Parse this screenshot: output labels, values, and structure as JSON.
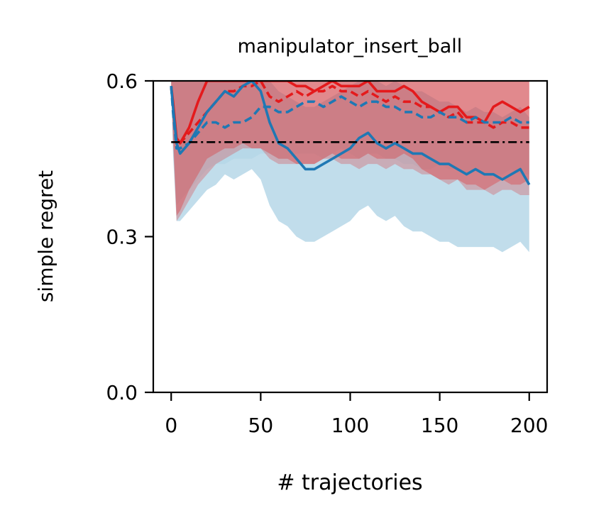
{
  "chart_data": {
    "type": "line",
    "title": "manipulator_insert_ball",
    "xlabel": "# trajectories",
    "ylabel": "simple regret",
    "xlim": [
      -10,
      210
    ],
    "ylim": [
      0.0,
      0.6
    ],
    "xticks": [
      0,
      50,
      100,
      150,
      200
    ],
    "xtick_labels": [
      "0",
      "50",
      "100",
      "150",
      "200"
    ],
    "yticks": [
      0.0,
      0.3,
      0.6
    ],
    "ytick_labels": [
      "0.0",
      "0.3",
      "0.6"
    ],
    "grid": false,
    "legend": "none",
    "x": [
      0,
      1,
      3,
      5,
      10,
      15,
      20,
      25,
      30,
      35,
      40,
      45,
      50,
      55,
      60,
      65,
      70,
      75,
      80,
      85,
      90,
      95,
      100,
      105,
      110,
      115,
      120,
      125,
      130,
      135,
      140,
      145,
      150,
      155,
      160,
      165,
      170,
      175,
      180,
      185,
      190,
      195,
      200
    ],
    "series": [
      {
        "style": "solid",
        "color": "#e41a1c",
        "values": [
          0.59,
          0.56,
          0.49,
          0.48,
          0.51,
          0.56,
          0.6,
          0.6,
          0.6,
          0.6,
          0.6,
          0.6,
          0.6,
          0.6,
          0.6,
          0.6,
          0.59,
          0.59,
          0.58,
          0.59,
          0.6,
          0.59,
          0.59,
          0.59,
          0.6,
          0.58,
          0.58,
          0.58,
          0.59,
          0.58,
          0.56,
          0.55,
          0.54,
          0.55,
          0.55,
          0.53,
          0.53,
          0.52,
          0.55,
          0.56,
          0.55,
          0.54,
          0.55
        ],
        "band_low": [
          0.59,
          0.5,
          0.34,
          0.35,
          0.39,
          0.42,
          0.45,
          0.46,
          0.47,
          0.47,
          0.48,
          0.47,
          0.47,
          0.46,
          0.45,
          0.45,
          0.44,
          0.44,
          0.44,
          0.45,
          0.46,
          0.45,
          0.45,
          0.45,
          0.46,
          0.45,
          0.45,
          0.45,
          0.46,
          0.45,
          0.43,
          0.42,
          0.41,
          0.41,
          0.41,
          0.4,
          0.4,
          0.39,
          0.4,
          0.41,
          0.4,
          0.4,
          0.41
        ],
        "band_high": [
          0.6,
          0.6,
          0.6,
          0.6,
          0.6,
          0.6,
          0.6,
          0.6,
          0.6,
          0.6,
          0.6,
          0.6,
          0.6,
          0.6,
          0.6,
          0.6,
          0.6,
          0.6,
          0.6,
          0.6,
          0.6,
          0.6,
          0.6,
          0.6,
          0.6,
          0.6,
          0.6,
          0.6,
          0.6,
          0.6,
          0.6,
          0.6,
          0.6,
          0.6,
          0.6,
          0.6,
          0.6,
          0.6,
          0.6,
          0.6,
          0.6,
          0.6,
          0.6
        ]
      },
      {
        "style": "dashed",
        "color": "#e41a1c",
        "values": [
          0.59,
          0.55,
          0.48,
          0.48,
          0.5,
          0.52,
          0.54,
          0.56,
          0.58,
          0.58,
          0.59,
          0.59,
          0.6,
          0.57,
          0.56,
          0.57,
          0.58,
          0.57,
          0.58,
          0.58,
          0.59,
          0.58,
          0.58,
          0.57,
          0.58,
          0.57,
          0.56,
          0.57,
          0.56,
          0.56,
          0.55,
          0.55,
          0.54,
          0.53,
          0.54,
          0.52,
          0.52,
          0.52,
          0.51,
          0.52,
          0.52,
          0.51,
          0.51
        ],
        "band_low": [
          0.59,
          0.48,
          0.33,
          0.34,
          0.37,
          0.4,
          0.42,
          0.44,
          0.45,
          0.46,
          0.47,
          0.47,
          0.47,
          0.45,
          0.44,
          0.44,
          0.44,
          0.44,
          0.44,
          0.45,
          0.45,
          0.44,
          0.44,
          0.43,
          0.44,
          0.44,
          0.43,
          0.44,
          0.43,
          0.43,
          0.42,
          0.42,
          0.41,
          0.4,
          0.41,
          0.39,
          0.39,
          0.39,
          0.38,
          0.39,
          0.39,
          0.38,
          0.38
        ],
        "band_high": [
          0.6,
          0.6,
          0.6,
          0.6,
          0.6,
          0.6,
          0.6,
          0.6,
          0.6,
          0.6,
          0.6,
          0.6,
          0.6,
          0.6,
          0.6,
          0.6,
          0.6,
          0.6,
          0.6,
          0.6,
          0.6,
          0.6,
          0.6,
          0.6,
          0.6,
          0.6,
          0.6,
          0.6,
          0.6,
          0.6,
          0.6,
          0.6,
          0.6,
          0.6,
          0.6,
          0.6,
          0.6,
          0.6,
          0.6,
          0.6,
          0.6,
          0.6,
          0.6
        ]
      },
      {
        "style": "solid",
        "color": "#1f78b4",
        "values": [
          0.59,
          0.55,
          0.48,
          0.46,
          0.48,
          0.51,
          0.54,
          0.56,
          0.58,
          0.57,
          0.59,
          0.6,
          0.58,
          0.52,
          0.48,
          0.47,
          0.45,
          0.43,
          0.43,
          0.44,
          0.45,
          0.46,
          0.47,
          0.49,
          0.5,
          0.48,
          0.47,
          0.48,
          0.47,
          0.46,
          0.46,
          0.45,
          0.44,
          0.44,
          0.43,
          0.42,
          0.43,
          0.42,
          0.42,
          0.41,
          0.42,
          0.43,
          0.4
        ],
        "band_low": [
          0.59,
          0.46,
          0.33,
          0.33,
          0.35,
          0.37,
          0.39,
          0.4,
          0.42,
          0.41,
          0.42,
          0.43,
          0.41,
          0.36,
          0.33,
          0.32,
          0.3,
          0.29,
          0.29,
          0.3,
          0.31,
          0.32,
          0.33,
          0.35,
          0.36,
          0.34,
          0.33,
          0.34,
          0.32,
          0.31,
          0.31,
          0.3,
          0.29,
          0.29,
          0.28,
          0.28,
          0.28,
          0.28,
          0.28,
          0.27,
          0.28,
          0.29,
          0.27
        ],
        "band_high": [
          0.6,
          0.6,
          0.6,
          0.6,
          0.6,
          0.6,
          0.6,
          0.6,
          0.6,
          0.6,
          0.6,
          0.6,
          0.6,
          0.6,
          0.58,
          0.57,
          0.56,
          0.55,
          0.55,
          0.56,
          0.57,
          0.58,
          0.59,
          0.6,
          0.6,
          0.6,
          0.59,
          0.6,
          0.59,
          0.58,
          0.58,
          0.57,
          0.56,
          0.56,
          0.55,
          0.54,
          0.55,
          0.54,
          0.54,
          0.53,
          0.54,
          0.55,
          0.53
        ]
      },
      {
        "style": "dashed",
        "color": "#1f78b4",
        "values": [
          0.59,
          0.54,
          0.47,
          0.47,
          0.48,
          0.5,
          0.52,
          0.52,
          0.51,
          0.52,
          0.52,
          0.53,
          0.55,
          0.55,
          0.54,
          0.54,
          0.55,
          0.56,
          0.56,
          0.55,
          0.56,
          0.57,
          0.56,
          0.55,
          0.56,
          0.56,
          0.55,
          0.55,
          0.54,
          0.54,
          0.53,
          0.53,
          0.54,
          0.53,
          0.53,
          0.52,
          0.53,
          0.52,
          0.52,
          0.52,
          0.53,
          0.52,
          0.52
        ],
        "band_low": [
          0.59,
          0.47,
          0.36,
          0.37,
          0.39,
          0.41,
          0.43,
          0.44,
          0.44,
          0.45,
          0.45,
          0.45,
          0.46,
          0.46,
          0.45,
          0.45,
          0.46,
          0.46,
          0.46,
          0.45,
          0.46,
          0.47,
          0.46,
          0.45,
          0.46,
          0.46,
          0.45,
          0.45,
          0.44,
          0.44,
          0.43,
          0.43,
          0.44,
          0.43,
          0.43,
          0.42,
          0.43,
          0.42,
          0.42,
          0.42,
          0.43,
          0.42,
          0.42
        ],
        "band_high": [
          0.6,
          0.6,
          0.6,
          0.6,
          0.6,
          0.6,
          0.6,
          0.6,
          0.6,
          0.6,
          0.6,
          0.6,
          0.6,
          0.6,
          0.6,
          0.6,
          0.6,
          0.6,
          0.6,
          0.6,
          0.6,
          0.6,
          0.6,
          0.6,
          0.6,
          0.6,
          0.6,
          0.6,
          0.6,
          0.6,
          0.6,
          0.6,
          0.6,
          0.6,
          0.6,
          0.6,
          0.6,
          0.6,
          0.6,
          0.6,
          0.6,
          0.6,
          0.6
        ]
      }
    ],
    "reference_line": {
      "y": 0.482,
      "style": "dashdot",
      "color": "#000000",
      "x_range": [
        0,
        200
      ]
    }
  }
}
